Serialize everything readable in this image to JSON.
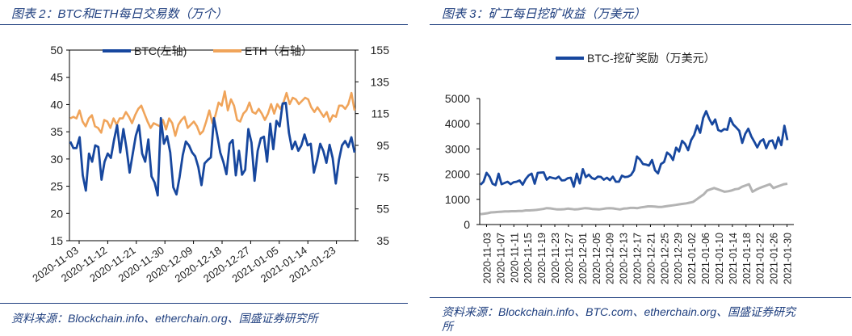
{
  "left": {
    "title": "图表 2：BTC和ETH每日交易数（万个）",
    "source": "资料来源：Blockchain.info、etherchain.org、国盛证券研究所"
  },
  "right": {
    "title": "图表 3：矿工每日挖矿收益（万美元）",
    "source_line1": "资料来源：Blockchain.info、BTC.com、etherchain.org、国盛证券研究",
    "source_line2": "所"
  },
  "colors": {
    "btc": "#17479e",
    "eth": "#f0a45a",
    "gray": "#b3b3b3",
    "accent": "#1f3f7f"
  },
  "chart_data": [
    {
      "type": "line",
      "title": "BTC和ETH每日交易数（万个）",
      "x_tick_labels": [
        "2020-11-03",
        "2020-11-12",
        "2020-11-21",
        "2020-11-30",
        "2020-12-09",
        "2020-12-18",
        "2020-12-27",
        "2021-01-05",
        "2021-01-14",
        "2021-01-23"
      ],
      "left_axis": {
        "min": 15,
        "max": 50,
        "step": 5,
        "ticks": [
          "50",
          "45",
          "40",
          "35",
          "30",
          "25",
          "20",
          "15"
        ]
      },
      "right_axis": {
        "min": 35,
        "max": 155,
        "step": 20,
        "ticks": [
          "155",
          "135",
          "115",
          "95",
          "75",
          "55",
          "35"
        ]
      },
      "legend": [
        "BTC(左轴)",
        "ETH（右轴）"
      ],
      "series": [
        {
          "name": "BTC(左轴)",
          "axis": "left",
          "values": [
            33.2,
            32,
            32,
            34,
            27,
            24.2,
            31,
            29.5,
            32.5,
            32.2,
            26.2,
            29.5,
            31,
            30.2,
            33.5,
            36.2,
            31.2,
            35.5,
            32,
            27.5,
            31,
            34.3,
            36.2,
            31,
            29.5,
            33.6,
            26.8,
            25.7,
            23.3,
            37.5,
            32.8,
            34.2,
            31.2,
            24.8,
            23.5,
            26.7,
            30.7,
            33.2,
            32.5,
            31.2,
            30.5,
            28.5,
            25.2,
            29.2,
            29.8,
            30.3,
            37.5,
            34.5,
            31.2,
            29.5,
            27.2,
            32.8,
            33.5,
            27,
            31.5,
            27.1,
            28,
            35.5,
            33,
            26,
            31.5,
            33.8,
            34.1,
            29.5,
            36.5,
            31.8,
            37,
            36,
            40.2,
            40.3,
            34.8,
            31.8,
            33.2,
            31.5,
            32.5,
            34.5,
            32.5,
            32.8,
            27.5,
            29.8,
            32.8,
            31.5,
            29.3,
            32.6,
            30.2,
            25.5,
            29.8,
            32.5,
            33.3,
            32.2,
            34,
            31.2
          ]
        },
        {
          "name": "ETH（右轴）",
          "axis": "right",
          "values": [
            112,
            113,
            112,
            117,
            110,
            107,
            112,
            114,
            107,
            106,
            103,
            111,
            110,
            106,
            112,
            108,
            112,
            112,
            116,
            113,
            109,
            114,
            118,
            120,
            115,
            110,
            106,
            109,
            108,
            107,
            111,
            105,
            112,
            109,
            101,
            108,
            111,
            113,
            106,
            108,
            110,
            107,
            102,
            104,
            110,
            117,
            109,
            114,
            122,
            120,
            129,
            117,
            124,
            120,
            111,
            110,
            115,
            117,
            122,
            116,
            115,
            118,
            115,
            111,
            115,
            121,
            115,
            121,
            118,
            122,
            128,
            121,
            125,
            124,
            121,
            123,
            125,
            124,
            119,
            116,
            119,
            116,
            113,
            116,
            110,
            114,
            113,
            120,
            120,
            118,
            121,
            128,
            117
          ]
        }
      ]
    },
    {
      "type": "line",
      "title": "矿工每日挖矿收益（万美元）",
      "x_tick_labels": [
        "2020-11-03",
        "2020-11-07",
        "2020-11-11",
        "2020-11-15",
        "2020-11-19",
        "2020-11-23",
        "2020-11-27",
        "2020-12-01",
        "2020-12-05",
        "2020-12-09",
        "2020-12-13",
        "2020-12-17",
        "2020-12-21",
        "2020-12-25",
        "2020-12-29",
        "2021-01-02",
        "2021-01-06",
        "2021-01-10",
        "2021-01-14",
        "2021-01-18",
        "2021-01-22",
        "2021-01-26",
        "2021-01-30"
      ],
      "y_axis": {
        "min": 0,
        "max": 5000,
        "step": 1000,
        "ticks": [
          "5000",
          "4000",
          "3000",
          "2000",
          "1000",
          "0"
        ]
      },
      "legend": [
        "BTC-挖矿奖励（万美元）"
      ],
      "series": [
        {
          "name": "BTC-挖矿奖励（万美元）",
          "values": [
            1580,
            1700,
            2050,
            1900,
            1620,
            1560,
            2020,
            1600,
            1650,
            1700,
            1600,
            1680,
            1700,
            1750,
            1580,
            1800,
            1950,
            2020,
            1620,
            2050,
            2060,
            2070,
            1780,
            1880,
            1850,
            1820,
            1900,
            1750,
            1760,
            1840,
            1860,
            1500,
            2020,
            1630,
            2200,
            1880,
            1980,
            1850,
            1800,
            1900,
            1890,
            1780,
            1860,
            1760,
            1900,
            1700,
            1700,
            1940,
            1880,
            1900,
            1960,
            2150,
            2700,
            2580,
            2400,
            2380,
            2340,
            2560,
            2150,
            2030,
            2400,
            2480,
            2860,
            2760,
            2560,
            3050,
            2900,
            3320,
            3200,
            2950,
            3350,
            3550,
            3930,
            3640,
            4230,
            4500,
            4200,
            3970,
            4170,
            3750,
            3700,
            3790,
            3760,
            4220,
            3970,
            3850,
            3720,
            3240,
            3600,
            3800,
            3500,
            3290,
            3060,
            3300,
            3380,
            3030,
            3300,
            3340,
            3020,
            3460,
            3150,
            3920,
            3350
          ]
        },
        {
          "name": "(unlabeled gray series)",
          "values": [
            410,
            430,
            450,
            480,
            490,
            500,
            510,
            520,
            520,
            530,
            530,
            540,
            540,
            560,
            560,
            570,
            580,
            600,
            620,
            650,
            640,
            620,
            600,
            600,
            610,
            630,
            620,
            600,
            610,
            630,
            650,
            640,
            620,
            610,
            600,
            620,
            640,
            650,
            640,
            620,
            600,
            630,
            640,
            660,
            660,
            650,
            680,
            700,
            720,
            720,
            710,
            700,
            700,
            720,
            740,
            760,
            780,
            800,
            820,
            840,
            870,
            900,
            1000,
            1100,
            1200,
            1350,
            1400,
            1450,
            1400,
            1350,
            1300,
            1320,
            1350,
            1400,
            1420,
            1500,
            1550,
            1600,
            1300,
            1380,
            1450,
            1500,
            1550,
            1600,
            1450,
            1500,
            1550,
            1600,
            1620
          ]
        }
      ]
    }
  ]
}
